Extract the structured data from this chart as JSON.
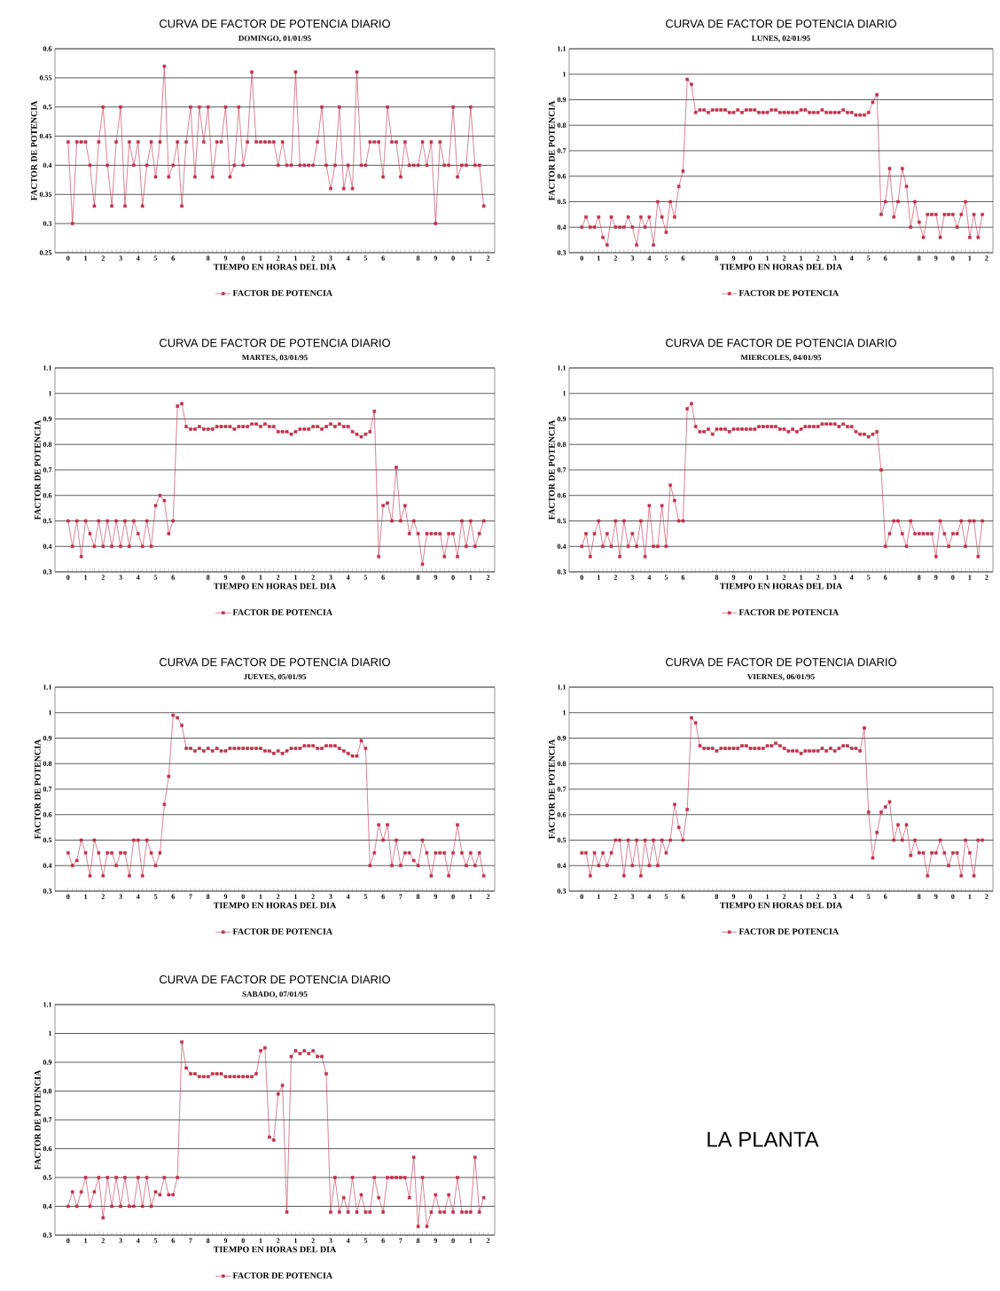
{
  "chart_data": [
    {
      "type": "line",
      "title": "CURVA DE FACTOR DE POTENCIA DIARIO",
      "subtitle": "DOMINGO, 01/01/95",
      "xlabel": "TIEMPO EN HORAS DEL DIA",
      "ylabel": "FACTOR DE POTENCIA",
      "grid": "y",
      "legend": "bottom",
      "marker": "square",
      "categories": [
        "0",
        null,
        null,
        null,
        "1",
        null,
        null,
        null,
        "2",
        null,
        null,
        null,
        "3",
        null,
        null,
        null,
        "4",
        null,
        null,
        null,
        "5",
        null,
        null,
        null,
        "6",
        null,
        null,
        null,
        null,
        null,
        null,
        null,
        "8",
        null,
        null,
        null,
        "9",
        null,
        null,
        null,
        "0",
        null,
        null,
        null,
        "1",
        null,
        null,
        null,
        "2",
        null,
        null,
        null,
        "1",
        null,
        null,
        null,
        "2",
        null,
        null,
        null,
        "3",
        null,
        null,
        null,
        "4",
        null,
        null,
        null,
        "5",
        null,
        null,
        null,
        "6",
        null,
        null,
        null,
        null,
        null,
        null,
        null,
        "8",
        null,
        null,
        null,
        "9",
        null,
        null,
        null,
        "0",
        null,
        null,
        null,
        "1",
        null,
        null,
        null,
        "2"
      ],
      "ylim": [
        0.25,
        0.6
      ],
      "yticks": [
        0.25,
        0.3,
        0.35,
        0.4,
        0.45,
        0.5,
        0.55,
        0.6
      ],
      "series": [
        {
          "name": "FACTOR DE POTENCIA",
          "color": "#c0304a",
          "values": [
            0.44,
            0.3,
            0.44,
            0.44,
            0.44,
            0.4,
            0.33,
            0.44,
            0.5,
            0.4,
            0.33,
            0.44,
            0.5,
            0.33,
            0.44,
            0.4,
            0.44,
            0.33,
            0.4,
            0.44,
            0.38,
            0.44,
            0.57,
            0.38,
            0.4,
            0.44,
            0.33,
            0.44,
            0.5,
            0.38,
            0.5,
            0.44,
            0.5,
            0.38,
            0.44,
            0.44,
            0.5,
            0.38,
            0.4,
            0.5,
            0.4,
            0.44,
            0.56,
            0.44,
            0.44,
            0.44,
            0.44,
            0.44,
            0.4,
            0.44,
            0.4,
            0.4,
            0.56,
            0.4,
            0.4,
            0.4,
            0.4,
            0.44,
            0.5,
            0.4,
            0.36,
            0.4,
            0.5,
            0.36,
            0.4,
            0.36,
            0.56,
            0.4,
            0.4,
            0.44,
            0.44,
            0.44,
            0.38,
            0.5,
            0.44,
            0.44,
            0.38,
            0.44,
            0.4,
            0.4,
            0.4,
            0.44,
            0.4,
            0.44,
            0.3,
            0.44,
            0.4,
            0.4,
            0.5,
            0.38,
            0.4,
            0.4,
            0.5,
            0.4,
            0.4,
            0.33,
            null
          ]
        }
      ]
    },
    {
      "type": "line",
      "title": "CURVA DE FACTOR DE POTENCIA DIARIO",
      "subtitle": "LUNES, 02/01/95",
      "xlabel": "TIEMPO EN HORAS DEL DIA",
      "ylabel": "FACTOR DE POTENCIA",
      "grid": "y",
      "legend": "bottom",
      "marker": "square",
      "categories": [
        "0",
        null,
        null,
        null,
        "1",
        null,
        null,
        null,
        "2",
        null,
        null,
        null,
        "3",
        null,
        null,
        null,
        "4",
        null,
        null,
        null,
        "5",
        null,
        null,
        null,
        "6",
        null,
        null,
        null,
        null,
        null,
        null,
        null,
        "8",
        null,
        null,
        null,
        "9",
        null,
        null,
        null,
        "0",
        null,
        null,
        null,
        "1",
        null,
        null,
        null,
        "2",
        null,
        null,
        null,
        "1",
        null,
        null,
        null,
        "2",
        null,
        null,
        null,
        "3",
        null,
        null,
        null,
        "4",
        null,
        null,
        null,
        "5",
        null,
        null,
        null,
        "6",
        null,
        null,
        null,
        null,
        null,
        null,
        null,
        "8",
        null,
        null,
        null,
        "9",
        null,
        null,
        null,
        "0",
        null,
        null,
        null,
        "1",
        null,
        null,
        null,
        "2"
      ],
      "ylim": [
        0.3,
        1.1
      ],
      "yticks": [
        0.3,
        0.4,
        0.5,
        0.6,
        0.7,
        0.8,
        0.9,
        1,
        1.1
      ],
      "series": [
        {
          "name": "FACTOR DE POTENCIA",
          "color": "#c0304a",
          "values": [
            0.4,
            0.44,
            0.4,
            0.4,
            0.44,
            0.36,
            0.33,
            0.44,
            0.4,
            0.4,
            0.4,
            0.44,
            0.4,
            0.33,
            0.44,
            0.4,
            0.44,
            0.33,
            0.5,
            0.44,
            0.38,
            0.5,
            0.44,
            0.56,
            0.62,
            0.98,
            0.96,
            0.85,
            0.86,
            0.86,
            0.85,
            0.86,
            0.86,
            0.86,
            0.86,
            0.85,
            0.85,
            0.86,
            0.85,
            0.86,
            0.86,
            0.86,
            0.85,
            0.85,
            0.85,
            0.86,
            0.86,
            0.85,
            0.85,
            0.85,
            0.85,
            0.85,
            0.86,
            0.86,
            0.85,
            0.85,
            0.85,
            0.86,
            0.85,
            0.85,
            0.85,
            0.85,
            0.86,
            0.85,
            0.85,
            0.84,
            0.84,
            0.84,
            0.85,
            0.89,
            0.92,
            0.45,
            0.5,
            0.63,
            0.44,
            0.5,
            0.63,
            0.56,
            0.4,
            0.5,
            0.42,
            0.36,
            0.45,
            0.45,
            0.45,
            0.36,
            0.45,
            0.45,
            0.45,
            0.4,
            0.45,
            0.5,
            0.36,
            0.45,
            0.36,
            0.45,
            null
          ]
        }
      ]
    },
    {
      "type": "line",
      "title": "CURVA DE FACTOR DE POTENCIA DIARIO",
      "subtitle": "MARTES, 03/01/95",
      "xlabel": "TIEMPO EN HORAS DEL DIA",
      "ylabel": "FACTOR DE POTENCIA",
      "grid": "y",
      "legend": "bottom",
      "marker": "square",
      "categories": [
        "0",
        null,
        null,
        null,
        "1",
        null,
        null,
        null,
        "2",
        null,
        null,
        null,
        "3",
        null,
        null,
        null,
        "4",
        null,
        null,
        null,
        "5",
        null,
        null,
        null,
        "6",
        null,
        null,
        null,
        null,
        null,
        null,
        null,
        "8",
        null,
        null,
        null,
        "9",
        null,
        null,
        null,
        "0",
        null,
        null,
        null,
        "1",
        null,
        null,
        null,
        "2",
        null,
        null,
        null,
        "1",
        null,
        null,
        null,
        "2",
        null,
        null,
        null,
        "3",
        null,
        null,
        null,
        "4",
        null,
        null,
        null,
        "5",
        null,
        null,
        null,
        "6",
        null,
        null,
        null,
        null,
        null,
        null,
        null,
        "8",
        null,
        null,
        null,
        "9",
        null,
        null,
        null,
        "0",
        null,
        null,
        null,
        "1",
        null,
        null,
        null,
        "2"
      ],
      "ylim": [
        0.3,
        1.1
      ],
      "yticks": [
        0.3,
        0.4,
        0.5,
        0.6,
        0.7,
        0.8,
        0.9,
        1,
        1.1
      ],
      "series": [
        {
          "name": "FACTOR DE POTENCIA",
          "color": "#c0304a",
          "values": [
            0.5,
            0.4,
            0.5,
            0.36,
            0.5,
            0.45,
            0.4,
            0.5,
            0.4,
            0.5,
            0.4,
            0.5,
            0.4,
            0.5,
            0.4,
            0.5,
            0.45,
            0.4,
            0.5,
            0.4,
            0.56,
            0.6,
            0.58,
            0.45,
            0.5,
            0.95,
            0.96,
            0.87,
            0.86,
            0.86,
            0.87,
            0.86,
            0.86,
            0.86,
            0.87,
            0.87,
            0.87,
            0.87,
            0.86,
            0.87,
            0.87,
            0.87,
            0.88,
            0.88,
            0.87,
            0.88,
            0.87,
            0.87,
            0.85,
            0.85,
            0.85,
            0.84,
            0.85,
            0.86,
            0.86,
            0.86,
            0.87,
            0.87,
            0.86,
            0.87,
            0.88,
            0.87,
            0.88,
            0.87,
            0.87,
            0.85,
            0.84,
            0.83,
            0.84,
            0.85,
            0.93,
            0.36,
            0.56,
            0.57,
            0.5,
            0.71,
            0.5,
            0.56,
            0.45,
            0.5,
            0.45,
            0.33,
            0.45,
            0.45,
            0.45,
            0.45,
            0.36,
            0.45,
            0.45,
            0.36,
            0.5,
            0.4,
            0.5,
            0.4,
            0.45,
            0.5,
            null
          ]
        }
      ]
    },
    {
      "type": "line",
      "title": "CURVA DE FACTOR DE POTENCIA DIARIO",
      "subtitle": "MIERCOLES, 04/01/95",
      "xlabel": "TIEMPO EN HORAS DEL DIA",
      "ylabel": "FACTOR DE POTENCIA",
      "grid": "y",
      "legend": "bottom",
      "marker": "square",
      "categories": [
        "0",
        null,
        null,
        null,
        "1",
        null,
        null,
        null,
        "2",
        null,
        null,
        null,
        "3",
        null,
        null,
        null,
        "4",
        null,
        null,
        null,
        "5",
        null,
        null,
        null,
        "6",
        null,
        null,
        null,
        null,
        null,
        null,
        null,
        "8",
        null,
        null,
        null,
        "9",
        null,
        null,
        null,
        "0",
        null,
        null,
        null,
        "1",
        null,
        null,
        null,
        "2",
        null,
        null,
        null,
        "1",
        null,
        null,
        null,
        "2",
        null,
        null,
        null,
        "3",
        null,
        null,
        null,
        "4",
        null,
        null,
        null,
        "5",
        null,
        null,
        null,
        "6",
        null,
        null,
        null,
        null,
        null,
        null,
        null,
        "8",
        null,
        null,
        null,
        "9",
        null,
        null,
        null,
        "0",
        null,
        null,
        null,
        "1",
        null,
        null,
        null,
        "2"
      ],
      "ylim": [
        0.3,
        1.1
      ],
      "yticks": [
        0.3,
        0.4,
        0.5,
        0.6,
        0.7,
        0.8,
        0.9,
        1,
        1.1
      ],
      "series": [
        {
          "name": "FACTOR DE POTENCIA",
          "color": "#c0304a",
          "values": [
            0.4,
            0.45,
            0.36,
            0.45,
            0.5,
            0.4,
            0.45,
            0.4,
            0.5,
            0.36,
            0.5,
            0.4,
            0.45,
            0.4,
            0.5,
            0.36,
            0.56,
            0.4,
            0.4,
            0.56,
            0.4,
            0.64,
            0.58,
            0.5,
            0.5,
            0.94,
            0.96,
            0.87,
            0.85,
            0.85,
            0.86,
            0.84,
            0.86,
            0.86,
            0.86,
            0.85,
            0.86,
            0.86,
            0.86,
            0.86,
            0.86,
            0.86,
            0.87,
            0.87,
            0.87,
            0.87,
            0.87,
            0.86,
            0.86,
            0.85,
            0.86,
            0.85,
            0.86,
            0.87,
            0.87,
            0.87,
            0.87,
            0.88,
            0.88,
            0.88,
            0.88,
            0.87,
            0.88,
            0.87,
            0.87,
            0.85,
            0.84,
            0.84,
            0.83,
            0.84,
            0.85,
            0.7,
            0.4,
            0.45,
            0.5,
            0.5,
            0.45,
            0.4,
            0.5,
            0.45,
            0.45,
            0.45,
            0.45,
            0.45,
            0.36,
            0.5,
            0.45,
            0.4,
            0.45,
            0.45,
            0.5,
            0.4,
            0.5,
            0.5,
            0.36,
            0.5,
            null
          ]
        }
      ]
    },
    {
      "type": "line",
      "title": "CURVA DE FACTOR DE POTENCIA DIARIO",
      "subtitle": "JUEVES, 05/01/95",
      "xlabel": "TIEMPO EN HORAS DEL DIA",
      "ylabel": "FACTOR DE POTENCIA",
      "grid": "y",
      "legend": "bottom",
      "marker": "square",
      "categories": [
        "0",
        null,
        null,
        null,
        "1",
        null,
        null,
        null,
        "2",
        null,
        null,
        null,
        "3",
        null,
        null,
        null,
        "4",
        null,
        null,
        null,
        "5",
        null,
        null,
        null,
        "6",
        null,
        null,
        null,
        "7",
        null,
        null,
        null,
        "8",
        null,
        null,
        null,
        "9",
        null,
        null,
        null,
        "0",
        null,
        null,
        null,
        "1",
        null,
        null,
        null,
        "2",
        null,
        null,
        null,
        "1",
        null,
        null,
        null,
        "2",
        null,
        null,
        null,
        "3",
        null,
        null,
        null,
        "4",
        null,
        null,
        null,
        "5",
        null,
        null,
        null,
        "6",
        null,
        null,
        null,
        "7",
        null,
        null,
        null,
        "8",
        null,
        null,
        null,
        "9",
        null,
        null,
        null,
        "0",
        null,
        null,
        null,
        "1",
        null,
        null,
        null,
        "2"
      ],
      "ylim": [
        0.3,
        1.1
      ],
      "yticks": [
        0.3,
        0.4,
        0.5,
        0.6,
        0.7,
        0.8,
        0.9,
        1,
        1.1
      ],
      "series": [
        {
          "name": "FACTOR DE POTENCIA",
          "color": "#c0304a",
          "values": [
            0.45,
            0.4,
            0.42,
            0.5,
            0.45,
            0.36,
            0.5,
            0.45,
            0.36,
            0.45,
            0.45,
            0.4,
            0.45,
            0.45,
            0.36,
            0.5,
            0.5,
            0.36,
            0.5,
            0.45,
            0.4,
            0.45,
            0.64,
            0.75,
            0.99,
            0.98,
            0.95,
            0.86,
            0.86,
            0.85,
            0.86,
            0.85,
            0.86,
            0.85,
            0.86,
            0.85,
            0.85,
            0.86,
            0.86,
            0.86,
            0.86,
            0.86,
            0.86,
            0.86,
            0.86,
            0.85,
            0.85,
            0.84,
            0.85,
            0.84,
            0.85,
            0.86,
            0.86,
            0.86,
            0.87,
            0.87,
            0.87,
            0.86,
            0.86,
            0.87,
            0.87,
            0.87,
            0.86,
            0.85,
            0.84,
            0.83,
            0.83,
            0.89,
            0.86,
            0.4,
            0.45,
            0.56,
            0.5,
            0.56,
            0.4,
            0.5,
            0.4,
            0.45,
            0.45,
            0.42,
            0.4,
            0.5,
            0.45,
            0.36,
            0.45,
            0.45,
            0.45,
            0.36,
            0.45,
            0.56,
            0.45,
            0.4,
            0.45,
            0.4,
            0.45,
            0.36,
            null
          ]
        }
      ]
    },
    {
      "type": "line",
      "title": "CURVA DE FACTOR DE POTENCIA DIARIO",
      "subtitle": "VIERNES, 06/01/95",
      "xlabel": "TIEMPO EN HORAS DEL DIA",
      "ylabel": "FACTOR DE POTENCIA",
      "grid": "y",
      "legend": "bottom",
      "marker": "square",
      "categories": [
        "0",
        null,
        null,
        null,
        "1",
        null,
        null,
        null,
        "2",
        null,
        null,
        null,
        "3",
        null,
        null,
        null,
        "4",
        null,
        null,
        null,
        "5",
        null,
        null,
        null,
        "6",
        null,
        null,
        null,
        null,
        null,
        null,
        null,
        "8",
        null,
        null,
        null,
        "9",
        null,
        null,
        null,
        "0",
        null,
        null,
        null,
        "1",
        null,
        null,
        null,
        "2",
        null,
        null,
        null,
        "1",
        null,
        null,
        null,
        "2",
        null,
        null,
        null,
        "3",
        null,
        null,
        null,
        "4",
        null,
        null,
        null,
        "5",
        null,
        null,
        null,
        "6",
        null,
        null,
        null,
        null,
        null,
        null,
        null,
        "8",
        null,
        null,
        null,
        "9",
        null,
        null,
        null,
        "0",
        null,
        null,
        null,
        "1",
        null,
        null,
        null,
        "2"
      ],
      "ylim": [
        0.3,
        1.1
      ],
      "yticks": [
        0.3,
        0.4,
        0.5,
        0.6,
        0.7,
        0.8,
        0.9,
        1,
        1.1
      ],
      "series": [
        {
          "name": "FACTOR DE POTENCIA",
          "color": "#c0304a",
          "values": [
            0.45,
            0.45,
            0.36,
            0.45,
            0.4,
            0.45,
            0.4,
            0.45,
            0.5,
            0.5,
            0.36,
            0.5,
            0.4,
            0.5,
            0.36,
            0.5,
            0.4,
            0.5,
            0.4,
            0.5,
            0.45,
            0.5,
            0.64,
            0.55,
            0.5,
            0.62,
            0.98,
            0.96,
            0.87,
            0.86,
            0.86,
            0.86,
            0.85,
            0.86,
            0.86,
            0.86,
            0.86,
            0.86,
            0.87,
            0.87,
            0.86,
            0.86,
            0.86,
            0.86,
            0.87,
            0.87,
            0.88,
            0.87,
            0.86,
            0.85,
            0.85,
            0.85,
            0.84,
            0.85,
            0.85,
            0.85,
            0.85,
            0.86,
            0.85,
            0.86,
            0.85,
            0.86,
            0.87,
            0.87,
            0.86,
            0.86,
            0.85,
            0.94,
            0.61,
            0.43,
            0.53,
            0.61,
            0.63,
            0.65,
            0.5,
            0.56,
            0.5,
            0.56,
            0.44,
            0.5,
            0.45,
            0.45,
            0.36,
            0.45,
            0.45,
            0.5,
            0.45,
            0.4,
            0.45,
            0.45,
            0.36,
            0.5,
            0.45,
            0.36,
            0.5,
            0.5,
            null
          ]
        }
      ]
    },
    {
      "type": "line",
      "title": "CURVA DE FACTOR DE POTENCIA DIARIO",
      "subtitle": "SABADO, 07/01/95",
      "xlabel": "TIEMPO EN HORAS DEL DIA",
      "ylabel": "FACTOR DE POTENCIA",
      "grid": "y",
      "legend": "bottom",
      "marker": "square",
      "categories": [
        "0",
        null,
        null,
        null,
        "1",
        null,
        null,
        null,
        "2",
        null,
        null,
        null,
        "3",
        null,
        null,
        null,
        "4",
        null,
        null,
        null,
        "5",
        null,
        null,
        null,
        "6",
        null,
        null,
        null,
        "7",
        null,
        null,
        null,
        "8",
        null,
        null,
        null,
        "9",
        null,
        null,
        null,
        "0",
        null,
        null,
        null,
        "1",
        null,
        null,
        null,
        "2",
        null,
        null,
        null,
        "1",
        null,
        null,
        null,
        "2",
        null,
        null,
        null,
        "3",
        null,
        null,
        null,
        "4",
        null,
        null,
        null,
        "5",
        null,
        null,
        null,
        "6",
        null,
        null,
        null,
        "7",
        null,
        null,
        null,
        "8",
        null,
        null,
        null,
        "9",
        null,
        null,
        null,
        "0",
        null,
        null,
        null,
        "1",
        null,
        null,
        null,
        "2"
      ],
      "ylim": [
        0.3,
        1.1
      ],
      "yticks": [
        0.3,
        0.4,
        0.5,
        0.6,
        0.7,
        0.8,
        0.9,
        1,
        1.1
      ],
      "series": [
        {
          "name": "FACTOR DE POTENCIA",
          "color": "#c0304a",
          "values": [
            0.4,
            0.45,
            0.4,
            0.45,
            0.5,
            0.4,
            0.45,
            0.5,
            0.36,
            0.5,
            0.4,
            0.5,
            0.4,
            0.5,
            0.4,
            0.4,
            0.5,
            0.4,
            0.5,
            0.4,
            0.45,
            0.44,
            0.5,
            0.44,
            0.44,
            0.5,
            0.97,
            0.88,
            0.86,
            0.86,
            0.85,
            0.85,
            0.85,
            0.86,
            0.86,
            0.86,
            0.85,
            0.85,
            0.85,
            0.85,
            0.85,
            0.85,
            0.85,
            0.86,
            0.94,
            0.95,
            0.64,
            0.63,
            0.79,
            0.82,
            0.38,
            0.92,
            0.94,
            0.93,
            0.94,
            0.93,
            0.94,
            0.92,
            0.92,
            0.86,
            0.38,
            0.5,
            0.38,
            0.43,
            0.38,
            0.5,
            0.38,
            0.44,
            0.38,
            0.38,
            0.5,
            0.43,
            0.38,
            0.5,
            0.5,
            0.5,
            0.5,
            0.5,
            0.43,
            0.57,
            0.33,
            0.5,
            0.33,
            0.38,
            0.44,
            0.38,
            0.38,
            0.44,
            0.38,
            0.5,
            0.38,
            0.38,
            0.38,
            0.57,
            0.38,
            0.43,
            null
          ]
        }
      ]
    },
    {
      "type": "other",
      "title": "LA PLANTA"
    }
  ]
}
